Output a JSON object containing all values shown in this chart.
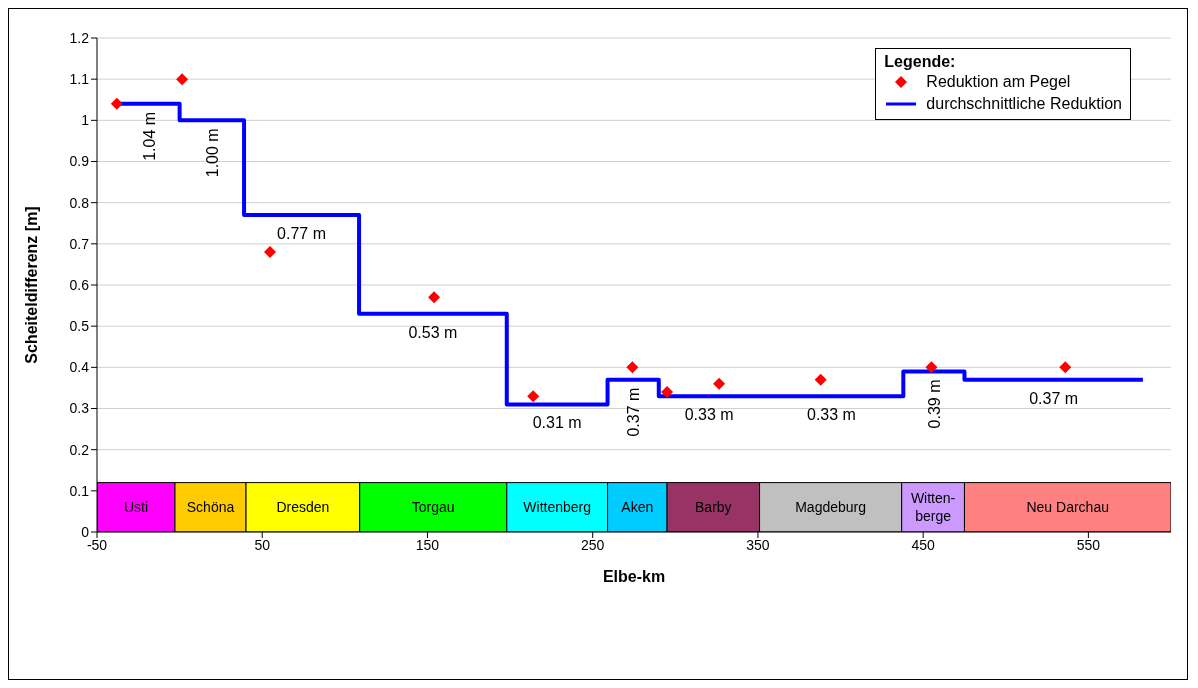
{
  "chart_data": {
    "type": "step",
    "xlabel": "Elbe-km",
    "ylabel": "Scheiteldifferenz [m]",
    "legend_title": "Legende:",
    "legend": "top right",
    "grid": "y",
    "xlim": [
      -50,
      600
    ],
    "xticks": [
      -50,
      50,
      150,
      250,
      350,
      450,
      550
    ],
    "ylim": [
      0,
      1.2
    ],
    "yticks": [
      0,
      0.1,
      0.2,
      0.3,
      0.4,
      0.5,
      0.6,
      0.7,
      0.8,
      0.9,
      1,
      1.1,
      1.2
    ],
    "series": [
      {
        "type": "scatter",
        "name": "Reduktion am Pegel",
        "color": "#ff0000",
        "marker": "diamond",
        "x": [
          -38,
          1.5,
          54.7,
          154,
          214,
          274,
          295,
          326.5,
          388,
          455,
          536
        ],
        "values": [
          1.04,
          1.1,
          0.68,
          0.57,
          0.33,
          0.4,
          0.34,
          0.36,
          0.37,
          0.4,
          0.4
        ]
      },
      {
        "type": "step",
        "name": "durchschnittliche Reduktion",
        "color": "#0000ff",
        "x": [
          -37,
          0,
          39,
          108.6,
          198,
          259,
          290,
          351,
          438,
          475,
          583
        ],
        "values": [
          1.04,
          1.0,
          0.77,
          0.53,
          0.31,
          0.37,
          0.33,
          0.33,
          0.39,
          0.37,
          0.37
        ]
      }
    ],
    "annotations": [
      {
        "text": "1.04 m",
        "x": -18.5,
        "y": 1.04
      },
      {
        "text": "1.00 m",
        "x": 19.5,
        "y": 1.0
      },
      {
        "text": "0.77 m",
        "x": 73.8,
        "y": 0.77
      },
      {
        "text": "0.53 m",
        "x": 153.3,
        "y": 0.53
      },
      {
        "text": "0.31 m",
        "x": 228.5,
        "y": 0.31
      },
      {
        "text": "0.37 m",
        "x": 274.5,
        "y": 0.37
      },
      {
        "text": "0.33 m",
        "x": 320.5,
        "y": 0.33
      },
      {
        "text": "0.33 m",
        "x": 394.5,
        "y": 0.33
      },
      {
        "text": "0.39 m",
        "x": 456.5,
        "y": 0.39
      },
      {
        "text": "0.37 m",
        "x": 529,
        "y": 0.37
      }
    ],
    "bands": [
      {
        "axis": "x",
        "from": -50,
        "to": -2.8,
        "label": "Usti",
        "color": "#ff00ff"
      },
      {
        "axis": "x",
        "from": -2.8,
        "to": 40.2,
        "label": "Schöna",
        "color": "#ffcc00"
      },
      {
        "axis": "x",
        "from": 40.2,
        "to": 109,
        "label": "Dresden",
        "color": "#ffff00"
      },
      {
        "axis": "x",
        "from": 109,
        "to": 198,
        "label": "Torgau",
        "color": "#00ff00"
      },
      {
        "axis": "x",
        "from": 198,
        "to": 259,
        "label": "Wittenberg",
        "color": "#00ffff"
      },
      {
        "axis": "x",
        "from": 259,
        "to": 295,
        "label": "Aken",
        "color": "#00ccff"
      },
      {
        "axis": "x",
        "from": 295,
        "to": 351,
        "label": "Barby",
        "color": "#993366"
      },
      {
        "axis": "x",
        "from": 351,
        "to": 437,
        "label": "Magdeburg",
        "color": "#c0c0c0"
      },
      {
        "axis": "x",
        "from": 437,
        "to": 475,
        "label": "Witten-berge",
        "color": "#cc99ff"
      },
      {
        "axis": "x",
        "from": 475,
        "to": 600,
        "label": "Neu Darchau",
        "color": "#ff8080"
      }
    ]
  }
}
